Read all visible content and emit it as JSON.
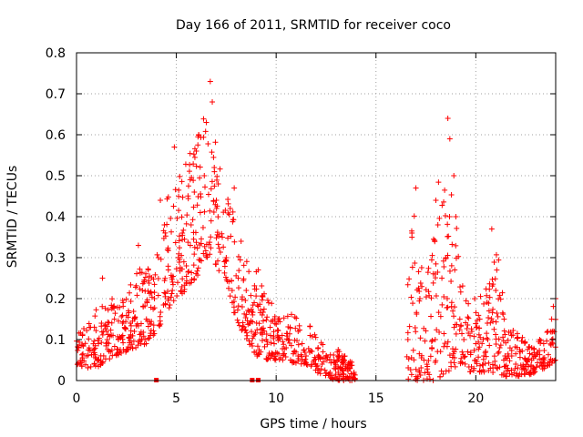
{
  "chart_data": {
    "type": "scatter",
    "title": "Day 166 of 2011, SRMTID for receiver coco",
    "xlabel": "GPS time / hours",
    "ylabel": "SRMTID / TECUs",
    "xlim": [
      0,
      24
    ],
    "ylim": [
      0,
      0.8
    ],
    "xticks": [
      0,
      5,
      10,
      15,
      20
    ],
    "yticks": [
      0,
      0.1,
      0.2,
      0.3,
      0.4,
      0.5,
      0.6,
      0.7,
      0.8
    ],
    "xtick_labels": [
      "0",
      "5",
      "10",
      "15",
      "20"
    ],
    "ytick_labels": [
      "0",
      "0.1",
      "0.2",
      "0.3",
      "0.4",
      "0.5",
      "0.6",
      "0.7",
      "0.8"
    ],
    "grid": true,
    "marker": "+",
    "color": "#ff0000",
    "data_gap_hours": [
      14.0,
      16.5
    ],
    "zero_markers_x": [
      4.0,
      8.8,
      9.1
    ],
    "envelope": {
      "x": [
        0,
        0.5,
        1,
        1.5,
        2,
        2.5,
        3,
        3.5,
        4,
        4.5,
        5,
        5.5,
        6,
        6.5,
        7,
        7.5,
        8,
        8.5,
        9,
        9.5,
        10,
        10.5,
        11,
        11.5,
        12,
        12.5,
        13,
        13.5,
        14,
        16.5,
        17,
        17.5,
        18,
        18.5,
        19,
        19.5,
        20,
        20.5,
        21,
        21.5,
        22,
        22.5,
        23,
        23.5,
        24
      ],
      "low": [
        0.04,
        0.03,
        0.03,
        0.05,
        0.06,
        0.07,
        0.08,
        0.09,
        0.12,
        0.16,
        0.2,
        0.22,
        0.25,
        0.3,
        0.28,
        0.22,
        0.15,
        0.1,
        0.06,
        0.05,
        0.05,
        0.05,
        0.04,
        0.04,
        0.02,
        0.01,
        0.0,
        0.0,
        0.0,
        0.0,
        0.0,
        0.0,
        0.0,
        0.02,
        0.03,
        0.02,
        0.02,
        0.02,
        0.02,
        0.01,
        0.01,
        0.01,
        0.02,
        0.03,
        0.05
      ],
      "high": [
        0.12,
        0.14,
        0.18,
        0.24,
        0.2,
        0.2,
        0.28,
        0.27,
        0.32,
        0.45,
        0.48,
        0.55,
        0.6,
        0.72,
        0.58,
        0.45,
        0.42,
        0.32,
        0.28,
        0.2,
        0.18,
        0.17,
        0.16,
        0.14,
        0.13,
        0.08,
        0.08,
        0.06,
        0.04,
        0.3,
        0.45,
        0.28,
        0.44,
        0.62,
        0.4,
        0.2,
        0.2,
        0.22,
        0.37,
        0.15,
        0.12,
        0.1,
        0.1,
        0.12,
        0.2
      ]
    },
    "points": [
      [
        0.1,
        0.08
      ],
      [
        0.3,
        0.11
      ],
      [
        0.5,
        0.06
      ],
      [
        0.7,
        0.13
      ],
      [
        0.9,
        0.04
      ],
      [
        1.1,
        0.09
      ],
      [
        1.3,
        0.25
      ],
      [
        1.5,
        0.12
      ],
      [
        1.7,
        0.07
      ],
      [
        1.9,
        0.15
      ],
      [
        2.1,
        0.1
      ],
      [
        2.3,
        0.14
      ],
      [
        2.6,
        0.17
      ],
      [
        2.9,
        0.12
      ],
      [
        3.1,
        0.33
      ],
      [
        3.3,
        0.22
      ],
      [
        3.5,
        0.15
      ],
      [
        3.7,
        0.11
      ],
      [
        3.9,
        0.2
      ],
      [
        4.1,
        0.3
      ],
      [
        4.2,
        0.44
      ],
      [
        4.4,
        0.38
      ],
      [
        4.6,
        0.27
      ],
      [
        4.8,
        0.22
      ],
      [
        4.9,
        0.57
      ],
      [
        5.1,
        0.3
      ],
      [
        5.3,
        0.36
      ],
      [
        5.5,
        0.28
      ],
      [
        5.7,
        0.33
      ],
      [
        5.9,
        0.46
      ],
      [
        6.0,
        0.56
      ],
      [
        6.2,
        0.41
      ],
      [
        6.4,
        0.5
      ],
      [
        6.5,
        0.63
      ],
      [
        6.7,
        0.73
      ],
      [
        6.8,
        0.68
      ],
      [
        6.9,
        0.52
      ],
      [
        7.1,
        0.48
      ],
      [
        7.3,
        0.35
      ],
      [
        7.5,
        0.3
      ],
      [
        7.7,
        0.42
      ],
      [
        7.9,
        0.47
      ],
      [
        8.1,
        0.25
      ],
      [
        8.3,
        0.18
      ],
      [
        8.5,
        0.22
      ],
      [
        8.7,
        0.14
      ],
      [
        8.9,
        0.19
      ],
      [
        9.1,
        0.27
      ],
      [
        9.3,
        0.16
      ],
      [
        9.5,
        0.1
      ],
      [
        9.7,
        0.13
      ],
      [
        9.9,
        0.09
      ],
      [
        10.1,
        0.15
      ],
      [
        10.3,
        0.11
      ],
      [
        10.5,
        0.08
      ],
      [
        10.7,
        0.13
      ],
      [
        10.9,
        0.07
      ],
      [
        11.1,
        0.12
      ],
      [
        11.3,
        0.09
      ],
      [
        11.5,
        0.06
      ],
      [
        11.7,
        0.11
      ],
      [
        11.9,
        0.05
      ],
      [
        12.1,
        0.08
      ],
      [
        12.3,
        0.04
      ],
      [
        12.5,
        0.06
      ],
      [
        12.7,
        0.02
      ],
      [
        12.9,
        0.05
      ],
      [
        13.1,
        0.03
      ],
      [
        13.3,
        0.06
      ],
      [
        13.5,
        0.01
      ],
      [
        13.7,
        0.03
      ],
      [
        13.9,
        0.02
      ],
      [
        16.6,
        0.1
      ],
      [
        16.8,
        0.35
      ],
      [
        17.0,
        0.47
      ],
      [
        17.2,
        0.2
      ],
      [
        17.4,
        0.05
      ],
      [
        17.6,
        0.02
      ],
      [
        17.8,
        0.08
      ],
      [
        18.0,
        0.44
      ],
      [
        18.1,
        0.38
      ],
      [
        18.3,
        0.25
      ],
      [
        18.5,
        0.3
      ],
      [
        18.6,
        0.64
      ],
      [
        18.7,
        0.59
      ],
      [
        18.9,
        0.5
      ],
      [
        19.0,
        0.4
      ],
      [
        19.2,
        0.15
      ],
      [
        19.4,
        0.1
      ],
      [
        19.6,
        0.07
      ],
      [
        19.8,
        0.12
      ],
      [
        20.0,
        0.09
      ],
      [
        20.2,
        0.15
      ],
      [
        20.4,
        0.06
      ],
      [
        20.6,
        0.1
      ],
      [
        20.8,
        0.37
      ],
      [
        21.0,
        0.22
      ],
      [
        21.2,
        0.08
      ],
      [
        21.4,
        0.05
      ],
      [
        21.6,
        0.03
      ],
      [
        21.8,
        0.06
      ],
      [
        22.0,
        0.04
      ],
      [
        22.2,
        0.07
      ],
      [
        22.4,
        0.03
      ],
      [
        22.6,
        0.05
      ],
      [
        22.8,
        0.08
      ],
      [
        23.0,
        0.06
      ],
      [
        23.2,
        0.1
      ],
      [
        23.4,
        0.09
      ],
      [
        23.6,
        0.12
      ],
      [
        23.8,
        0.15
      ],
      [
        24.0,
        0.2
      ]
    ]
  }
}
